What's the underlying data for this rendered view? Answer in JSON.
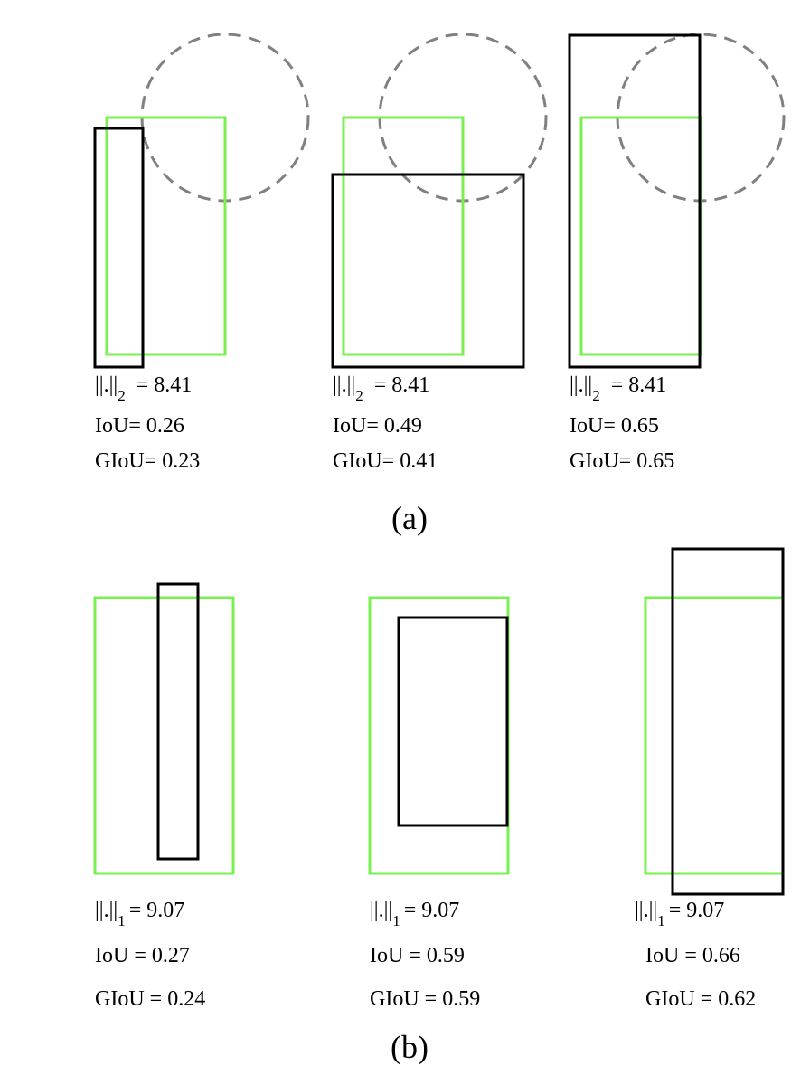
{
  "colors": {
    "ground_truth": "#78f050",
    "prediction": "#000000",
    "circle": "#808080",
    "background": "#ffffff"
  },
  "panel_a": {
    "caption": "(a)",
    "examples": [
      {
        "norm_base": "||.||",
        "norm_sub": "2",
        "norm_value": "= 8.41",
        "iou": "IoU= 0.26",
        "giou": "GIoU= 0.23"
      },
      {
        "norm_base": "||.||",
        "norm_sub": "2",
        "norm_value": "= 8.41",
        "iou": "IoU= 0.49",
        "giou": "GIoU= 0.41"
      },
      {
        "norm_base": "||.||",
        "norm_sub": "2",
        "norm_value": "= 8.41",
        "iou": "IoU= 0.65",
        "giou": "GIoU= 0.65"
      }
    ]
  },
  "panel_b": {
    "caption": "(b)",
    "examples": [
      {
        "norm_base": "||.||",
        "norm_sub": "1",
        "norm_value": "= 9.07",
        "iou": "IoU = 0.27",
        "giou": "GIoU = 0.24"
      },
      {
        "norm_base": "||.||",
        "norm_sub": "1",
        "norm_value": "= 9.07",
        "iou": "IoU = 0.59",
        "giou": "GIoU = 0.59"
      },
      {
        "norm_base": "||.||",
        "norm_sub": "1",
        "norm_value": "= 9.07",
        "iou": "IoU = 0.66",
        "giou": "GIoU = 0.62"
      }
    ]
  }
}
